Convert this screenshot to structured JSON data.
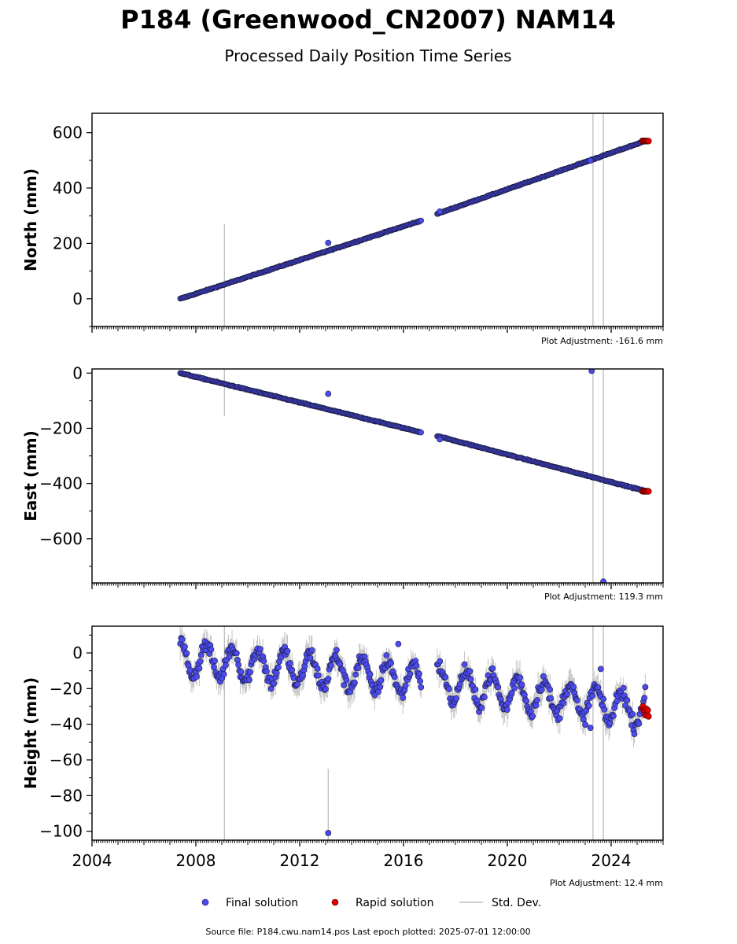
{
  "title": "P184 (Greenwood_CN2007) NAM14",
  "subtitle": "Processed Daily Position Time Series",
  "colors": {
    "final": "#4b4bf0",
    "rapid": "#e00000",
    "std_dev": "#bdbdbd",
    "edge": "#1a1a3a"
  },
  "legend": {
    "final": "Final solution",
    "rapid": "Rapid solution",
    "std_dev": "Std. Dev."
  },
  "footer": "Source file: P184.cwu.nam14.pos  Last epoch plotted: 2025-07-01 12:00:00",
  "chart_data": [
    {
      "type": "scatter",
      "ylabel": "North (mm)",
      "xlim": [
        2004,
        2026
      ],
      "ylim": [
        -100,
        670
      ],
      "yticks": [
        0,
        200,
        400,
        600
      ],
      "ytick_labels": [
        "0",
        "200",
        "400",
        "600"
      ],
      "adjustment": "Plot Adjustment: -161.6 mm",
      "trend": {
        "start": [
          2007.4,
          0
        ],
        "end": [
          2016.7,
          283
        ],
        "start2": [
          2017.3,
          307
        ],
        "end2": [
          2025.35,
          571
        ]
      },
      "gap": [
        2016.7,
        2017.3
      ],
      "outliers": [
        {
          "x": 2013.1,
          "y": 202
        },
        {
          "x": 2017.4,
          "y": 315
        },
        {
          "x": 2023.2,
          "y": 499
        }
      ],
      "rapid": {
        "x": [
          2025.2,
          2025.45
        ],
        "y": 570
      },
      "std_dev_bars": [
        {
          "x": 2009.1,
          "y0": -100,
          "y1": 270
        },
        {
          "x": 2023.3,
          "y0": -100,
          "y1": 670
        },
        {
          "x": 2023.7,
          "y0": -100,
          "y1": 670
        }
      ]
    },
    {
      "type": "scatter",
      "ylabel": "East (mm)",
      "xlim": [
        2004,
        2026
      ],
      "ylim": [
        -760,
        15
      ],
      "yticks": [
        -600,
        -400,
        -200,
        0
      ],
      "ytick_labels": [
        "−600",
        "−400",
        "−200",
        "0"
      ],
      "adjustment": "Plot Adjustment: 119.3 mm",
      "trend": {
        "start": [
          2007.4,
          0
        ],
        "end": [
          2016.7,
          -215
        ],
        "start2": [
          2017.3,
          -228
        ],
        "end2": [
          2025.35,
          -428
        ]
      },
      "gap": [
        2016.7,
        2017.3
      ],
      "outliers": [
        {
          "x": 2013.1,
          "y": -75
        },
        {
          "x": 2017.4,
          "y": -240
        },
        {
          "x": 2023.25,
          "y": 8
        },
        {
          "x": 2023.7,
          "y": -755
        }
      ],
      "rapid": {
        "x": [
          2025.2,
          2025.45
        ],
        "y": -428
      },
      "std_dev_bars": [
        {
          "x": 2009.1,
          "y0": -155,
          "y1": 15
        },
        {
          "x": 2023.3,
          "y0": -760,
          "y1": 15
        },
        {
          "x": 2023.7,
          "y0": -760,
          "y1": 15
        }
      ]
    },
    {
      "type": "scatter",
      "ylabel": "Height (mm)",
      "xlim": [
        2004,
        2026
      ],
      "ylim": [
        -105,
        15
      ],
      "yticks": [
        -100,
        -80,
        -60,
        -40,
        -20,
        0
      ],
      "ytick_labels": [
        "−100",
        "−80",
        "−60",
        "−40",
        "−20",
        "0"
      ],
      "xticks": [
        2004,
        2008,
        2012,
        2016,
        2020,
        2024
      ],
      "xtick_labels": [
        "2004",
        "2008",
        "2012",
        "2016",
        "2020",
        "2024"
      ],
      "adjustment": "Plot Adjustment: 12.4 mm",
      "trend": {
        "start": [
          2007.4,
          -3
        ],
        "end": [
          2016.7,
          -15
        ],
        "start2": [
          2017.3,
          -17
        ],
        "end2": [
          2025.35,
          -32
        ]
      },
      "seasonal_amplitude_mm": 9,
      "gap": [
        2016.7,
        2017.3
      ],
      "outliers": [
        {
          "x": 2013.1,
          "y": -101
        },
        {
          "x": 2015.8,
          "y": 5
        },
        {
          "x": 2023.2,
          "y": -42
        },
        {
          "x": 2023.6,
          "y": -9
        }
      ],
      "rapid": {
        "x": [
          2025.2,
          2025.45
        ],
        "y": -32
      },
      "std_dev_bars": [
        {
          "x": 2009.1,
          "y0": -105,
          "y1": 15
        },
        {
          "x": 2013.1,
          "y0": -105,
          "y1": -65
        },
        {
          "x": 2023.3,
          "y0": -105,
          "y1": 15
        },
        {
          "x": 2023.7,
          "y0": -105,
          "y1": 15
        }
      ]
    }
  ]
}
